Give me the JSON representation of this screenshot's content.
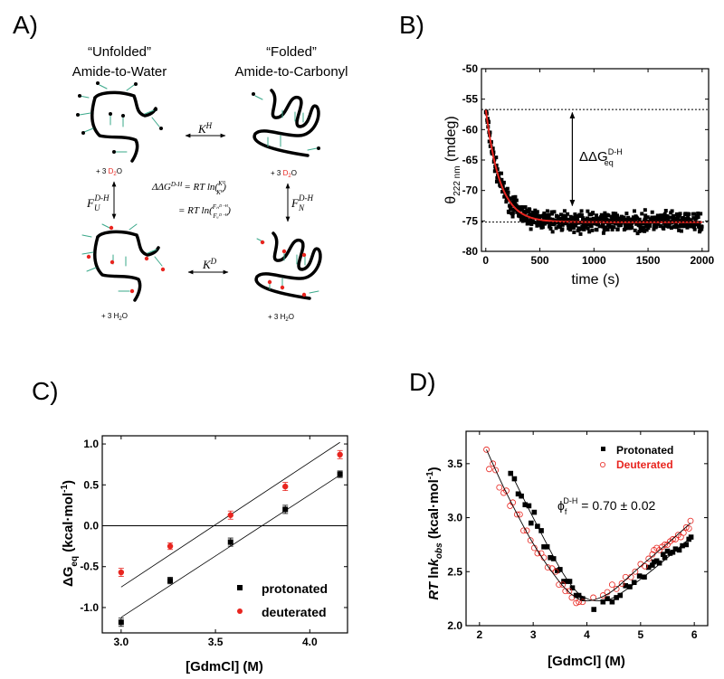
{
  "panels": {
    "A": {
      "label": "A)",
      "unfolded_title": "“Unfolded”",
      "unfolded_subtitle": "Amide-to-Water",
      "folded_title": "“Folded”",
      "folded_subtitle": "Amide-to-Carbonyl",
      "kh": {
        "base": "K",
        "sup": "H"
      },
      "kd": {
        "base": "K",
        "sup": "D"
      },
      "fu": {
        "base": "F",
        "sub": "U",
        "sup": "D-H"
      },
      "fn": {
        "base": "F",
        "sub": "N",
        "sup": "D-H"
      },
      "plus_d2o": {
        "prefix": "+ 3 ",
        "species": "D",
        "sub": "2",
        "suffix": "O"
      },
      "plus_h2o": {
        "prefix": "+ 3 H",
        "sub": "2",
        "suffix": "O"
      },
      "equation_line1": {
        "lhs": "ΔΔG",
        "lhs_sup": "D-H",
        "rhs": "= RT ln(",
        "num": "Kᴰ",
        "den": "Kᴴ",
        "close": ")"
      },
      "equation_line2": {
        "rhs": "= RT ln(",
        "num": "Fₙᴰ⁻ᴴ",
        "den": "Fᵤᴰ⁻ᴴ",
        "close": ")"
      },
      "colors": {
        "deuterium": "#e8251f",
        "hbond": "#3aa88a"
      }
    },
    "B": {
      "label": "B)"
    },
    "C": {
      "label": "C)"
    },
    "D": {
      "label": "D)"
    }
  },
  "chart_data": [
    {
      "id": "B",
      "type": "scatter",
      "xlabel": "time (s)",
      "ylabel": {
        "base": "θ",
        "sub": "222 nm",
        "unit": " (mdeg)"
      },
      "xlim": [
        -40,
        2060
      ],
      "ylim": [
        -80,
        -50
      ],
      "xticks": [
        0,
        500,
        1000,
        1500,
        2000
      ],
      "yticks": [
        -50,
        -55,
        -60,
        -65,
        -70,
        -75,
        -80
      ],
      "fit": {
        "equation": "y = -75.2 + 18.5*exp(-t/130)",
        "plateau": -75.2,
        "amplitude": 18.5,
        "tau": 130,
        "color": "#e8251f"
      },
      "data_summary": {
        "t_start": 0,
        "t_end": 2000,
        "t_step": 3,
        "noise_sd": 1.1,
        "marker": "square",
        "color": "#000000"
      },
      "reference_lines": [
        -56.7,
        -75.2
      ],
      "annotation": {
        "base": "ΔΔG",
        "sup": "D-H",
        "sub": "eq",
        "arrow_x": 800,
        "arrow_from": -57.2,
        "arrow_to": -72.5
      }
    },
    {
      "id": "C",
      "type": "scatter",
      "xlabel": "[GdmCl] (M)",
      "ylabel": {
        "base": "ΔG",
        "sub": "eq",
        "unit": " (kcal·mol",
        "sup": "-1",
        "close": ")"
      },
      "xlim": [
        2.9,
        4.2
      ],
      "ylim": [
        -1.31,
        1.1
      ],
      "xticks": [
        "3.0",
        "3.5",
        "4.0"
      ],
      "yticks": [
        "-1.0",
        "-0.5",
        "0.0",
        "0.5",
        "1.0"
      ],
      "series": [
        {
          "name": "protonated",
          "color": "#000000",
          "marker": "square",
          "x": [
            3.0,
            3.26,
            3.58,
            3.87,
            4.16
          ],
          "y": [
            -1.18,
            -0.67,
            -0.2,
            0.2,
            0.63
          ],
          "err": [
            0.05,
            0.04,
            0.05,
            0.05,
            0.04
          ],
          "fit": {
            "x": [
              3.0,
              4.16
            ],
            "y": [
              -1.12,
              0.62
            ]
          }
        },
        {
          "name": "deuterated",
          "color": "#e8251f",
          "marker": "circle",
          "x": [
            3.0,
            3.26,
            3.58,
            3.87,
            4.16
          ],
          "y": [
            -0.57,
            -0.25,
            0.13,
            0.48,
            0.87
          ],
          "err": [
            0.05,
            0.04,
            0.05,
            0.05,
            0.05
          ],
          "fit": {
            "x": [
              3.0,
              4.16
            ],
            "y": [
              -0.75,
              1.02
            ]
          }
        }
      ],
      "zero_line": 0,
      "legend": "bottom-right"
    },
    {
      "id": "D",
      "type": "scatter",
      "xlabel": "[GdmCl] (M)",
      "ylabel": {
        "base": "RT",
        "mid": " ln",
        "k": "k",
        "sub": "obs",
        "unit": " (kcal·mol",
        "sup": "-1",
        "close": ")"
      },
      "xlim": [
        1.75,
        6.25
      ],
      "ylim": [
        2.0,
        3.8
      ],
      "xticks": [
        "2",
        "3",
        "4",
        "5",
        "6"
      ],
      "yticks": [
        "2.0",
        "2.5",
        "3.0",
        "3.5"
      ],
      "annotation": {
        "base": "ϕ",
        "sub": "f",
        "sup": "D-H",
        "text": " = 0.70 ± 0.02"
      },
      "legend": "top-right",
      "series": [
        {
          "name": "Protonated",
          "color": "#000000",
          "marker": "square",
          "x": [
            2.58,
            2.65,
            2.72,
            2.78,
            2.85,
            2.92,
            2.96,
            3.02,
            3.08,
            3.15,
            3.2,
            3.26,
            3.32,
            3.38,
            3.45,
            3.5,
            3.57,
            3.63,
            3.68,
            3.73,
            3.8,
            3.85,
            3.92,
            4.13,
            4.3,
            4.38,
            4.47,
            4.55,
            4.62,
            4.72,
            4.8,
            4.88,
            4.98,
            5.07,
            5.15,
            5.22,
            5.25,
            5.3,
            5.35,
            5.42,
            5.45,
            5.5,
            5.55,
            5.6,
            5.65,
            5.72,
            5.78,
            5.85,
            5.9,
            5.94
          ],
          "y": [
            3.41,
            3.36,
            3.22,
            3.2,
            3.12,
            3.11,
            2.95,
            3.05,
            2.92,
            2.88,
            2.73,
            2.73,
            2.63,
            2.62,
            2.51,
            2.52,
            2.41,
            2.41,
            2.41,
            2.35,
            2.28,
            2.28,
            2.25,
            2.15,
            2.22,
            2.25,
            2.22,
            2.26,
            2.28,
            2.37,
            2.36,
            2.4,
            2.46,
            2.45,
            2.54,
            2.56,
            2.59,
            2.6,
            2.58,
            2.66,
            2.63,
            2.69,
            2.67,
            2.68,
            2.71,
            2.7,
            2.74,
            2.75,
            2.8,
            2.82
          ],
          "fit": {
            "x": [
              2.58,
              3.0,
              3.5,
              3.8,
              4.0,
              4.2,
              4.5,
              5.0,
              5.5,
              5.94
            ],
            "y": [
              3.42,
              3.0,
              2.53,
              2.32,
              2.25,
              2.23,
              2.26,
              2.43,
              2.63,
              2.82
            ]
          }
        },
        {
          "name": "Deuterated",
          "color": "#e8251f",
          "marker": "open-circle",
          "x": [
            2.13,
            2.18,
            2.25,
            2.3,
            2.37,
            2.45,
            2.5,
            2.57,
            2.62,
            2.7,
            2.75,
            2.82,
            2.88,
            2.95,
            3.02,
            3.08,
            3.15,
            3.2,
            3.27,
            3.35,
            3.42,
            3.48,
            3.55,
            3.6,
            3.67,
            3.72,
            3.8,
            3.85,
            3.92,
            4.12,
            4.3,
            4.38,
            4.47,
            4.55,
            4.65,
            4.72,
            4.82,
            4.9,
            5.0,
            5.08,
            5.15,
            5.22,
            5.25,
            5.3,
            5.35,
            5.4,
            5.45,
            5.5,
            5.55,
            5.6,
            5.65,
            5.7,
            5.75,
            5.8,
            5.85,
            5.9,
            5.93
          ],
          "y": [
            3.63,
            3.45,
            3.5,
            3.44,
            3.28,
            3.23,
            3.25,
            3.11,
            3.14,
            3.03,
            3.03,
            2.88,
            2.88,
            2.79,
            2.72,
            2.67,
            2.67,
            2.63,
            2.54,
            2.53,
            2.5,
            2.38,
            2.38,
            2.32,
            2.32,
            2.26,
            2.21,
            2.22,
            2.22,
            2.26,
            2.28,
            2.31,
            2.38,
            2.34,
            2.39,
            2.45,
            2.45,
            2.5,
            2.57,
            2.55,
            2.62,
            2.66,
            2.7,
            2.72,
            2.7,
            2.73,
            2.75,
            2.75,
            2.78,
            2.8,
            2.8,
            2.84,
            2.82,
            2.86,
            2.91,
            2.9,
            2.97
          ],
          "fit": {
            "x": [
              2.13,
              2.5,
              3.0,
              3.5,
              3.8,
              4.0,
              4.2,
              4.5,
              5.0,
              5.5,
              5.93
            ],
            "y": [
              3.63,
              3.23,
              2.76,
              2.4,
              2.26,
              2.23,
              2.25,
              2.33,
              2.55,
              2.76,
              2.95
            ]
          }
        }
      ]
    }
  ]
}
